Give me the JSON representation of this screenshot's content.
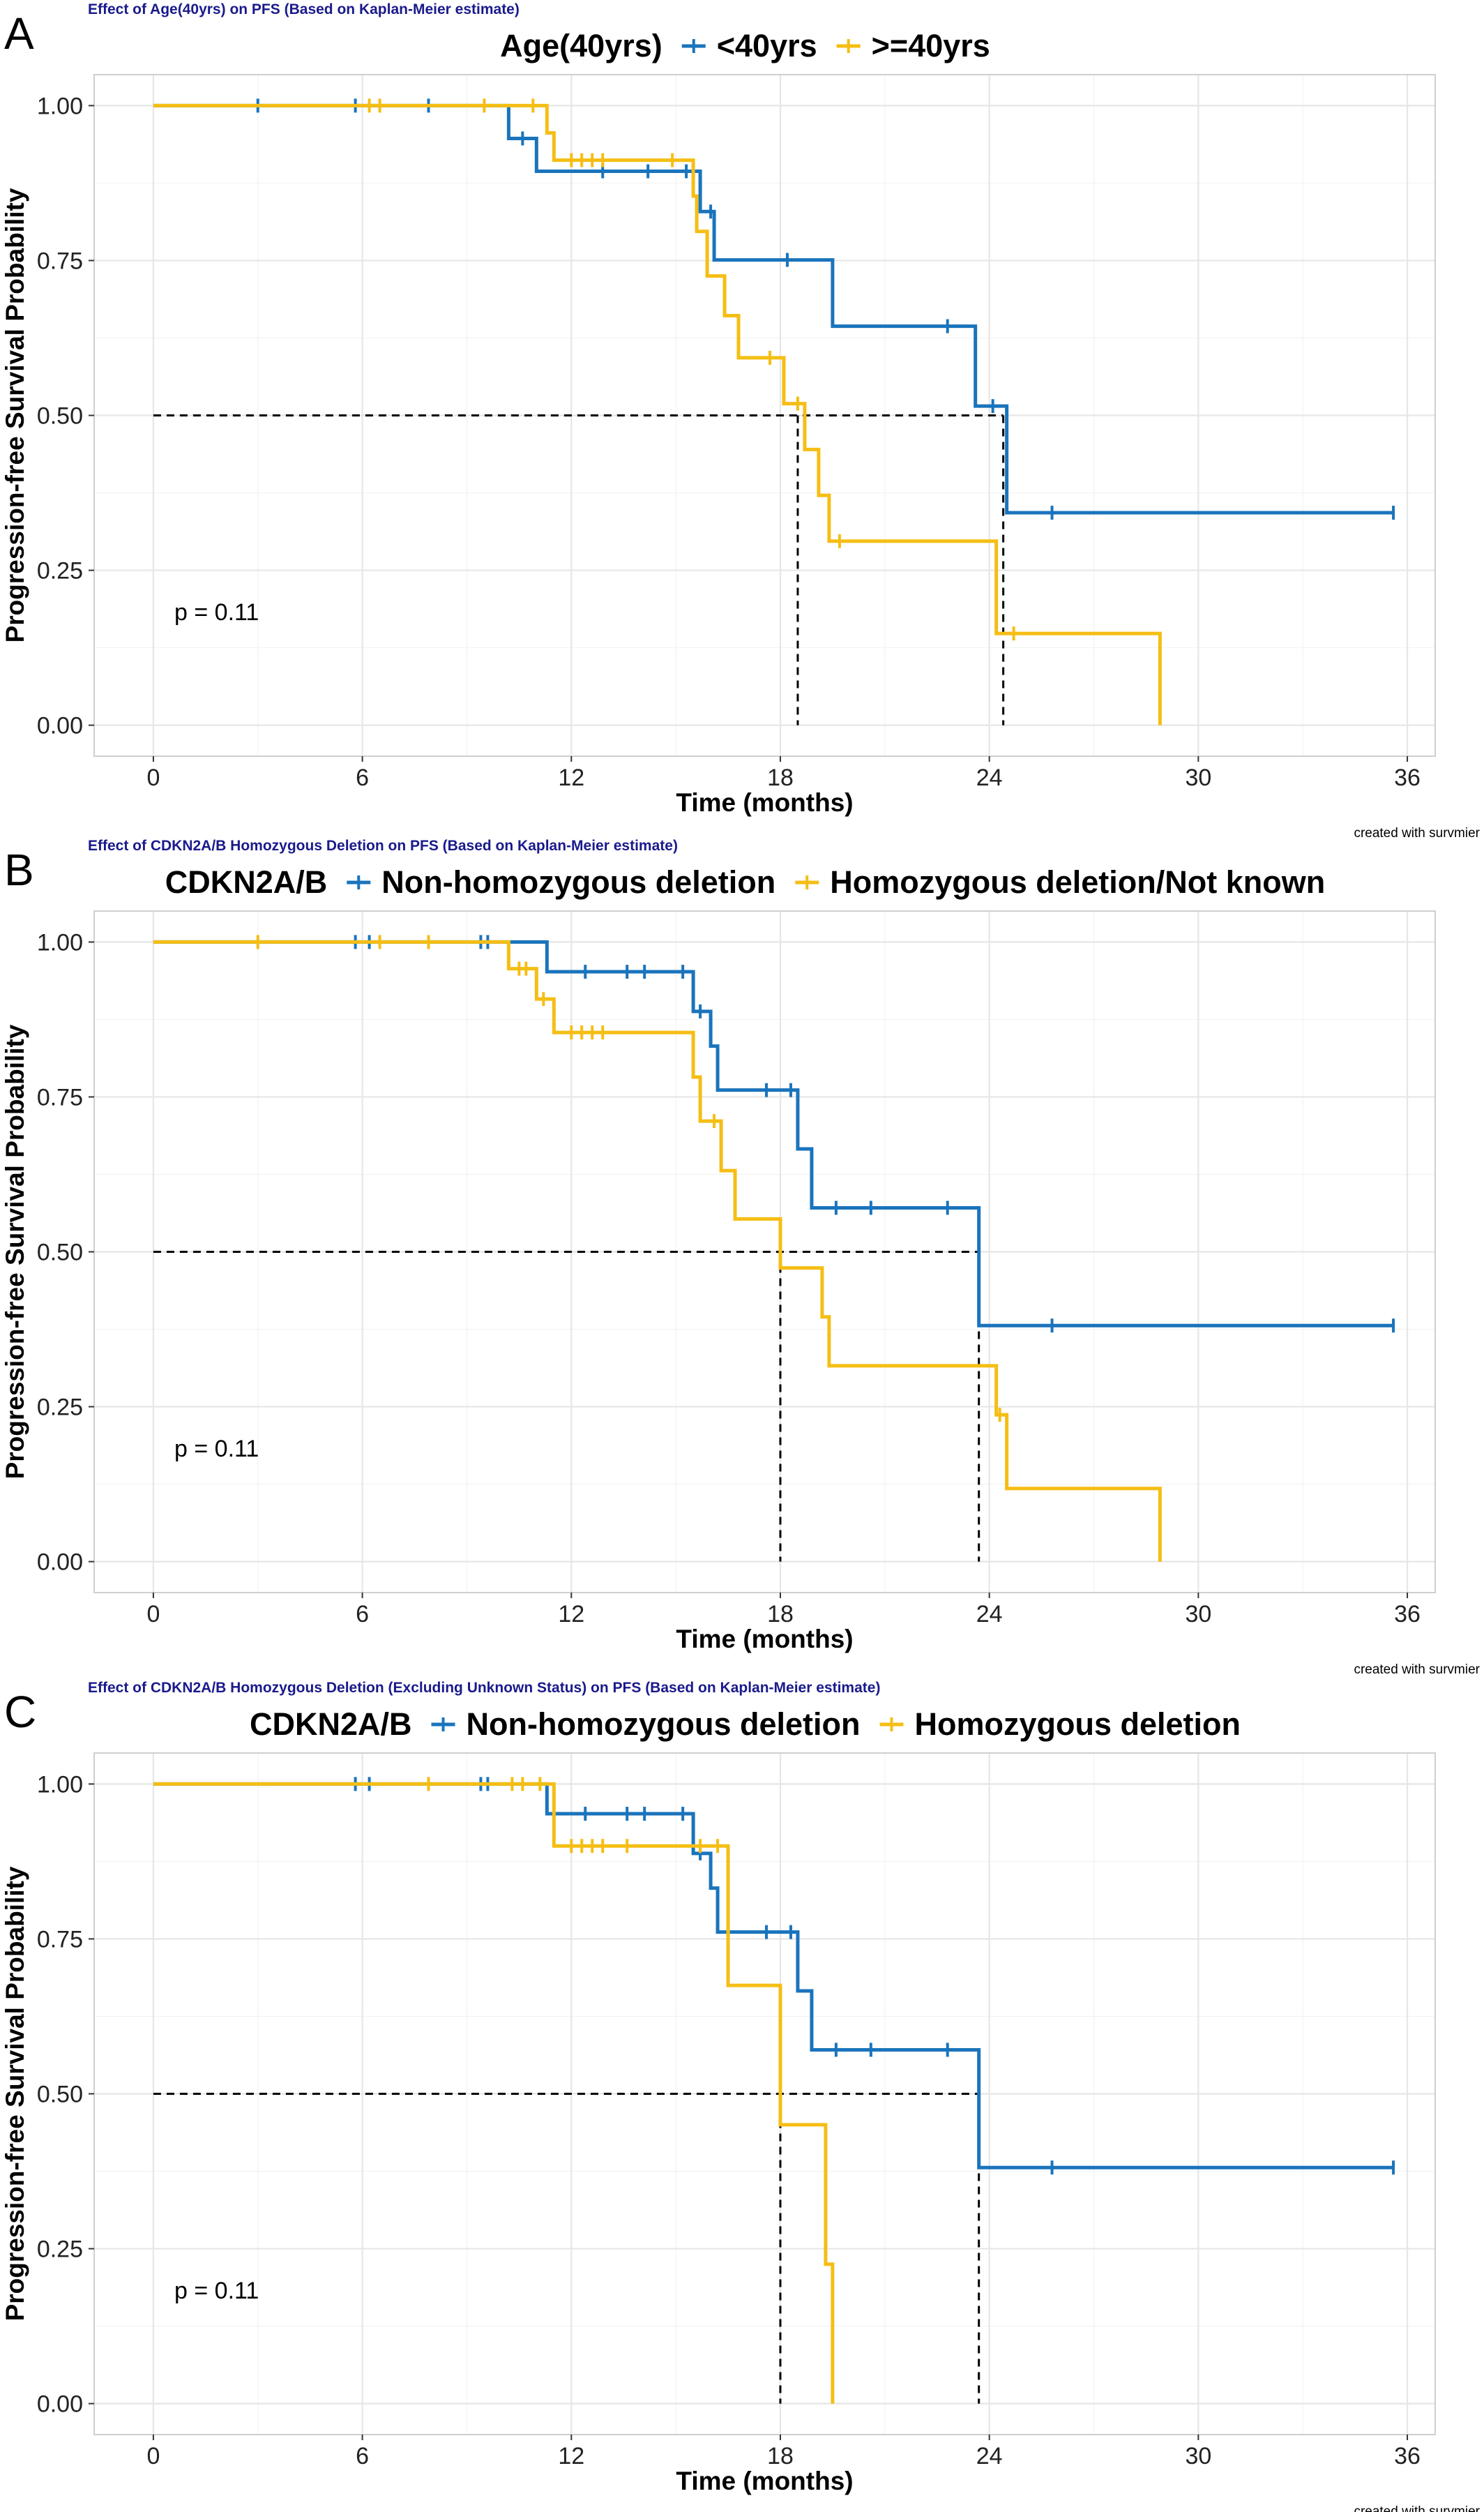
{
  "chart_data": [
    {
      "type": "line",
      "panel_label": "A",
      "title": "Effect of Age(40yrs) on PFS (Based on Kaplan-Meier estimate)",
      "legend_title": "Age(40yrs)",
      "legend_position": "top",
      "xlabel": "Time (months)",
      "ylabel": "Progression-free Survival Probability",
      "xlim": [
        -1.7,
        36.8
      ],
      "ylim": [
        -0.05,
        1.05
      ],
      "x_ticks": [
        0,
        6,
        12,
        18,
        24,
        30,
        36
      ],
      "y_ticks": [
        0.0,
        0.25,
        0.5,
        0.75,
        1.0
      ],
      "y_tick_labels": [
        "0.00",
        "0.25",
        "0.50",
        "0.75",
        "1.00"
      ],
      "grid": true,
      "p_value": "p = 0.11",
      "caption": "created with survmier",
      "median_line": {
        "y": 0.5,
        "x_drops": [
          18.5,
          24.4
        ],
        "x_end": 24.4
      },
      "series": [
        {
          "name": "<40yrs",
          "color": "#1a74bc",
          "steps": [
            [
              0,
              1.0
            ],
            [
              10.2,
              0.947
            ],
            [
              11.0,
              0.894
            ],
            [
              15.7,
              0.829
            ],
            [
              16.1,
              0.751
            ],
            [
              19.5,
              0.644
            ],
            [
              23.6,
              0.515
            ],
            [
              24.5,
              0.343
            ],
            [
              35.6,
              0.343
            ]
          ],
          "censor": [
            [
              3,
              1.0
            ],
            [
              5.8,
              1.0
            ],
            [
              7.9,
              1.0
            ],
            [
              10.6,
              0.947
            ],
            [
              12.9,
              0.894
            ],
            [
              14.2,
              0.894
            ],
            [
              15.3,
              0.894
            ],
            [
              16.0,
              0.829
            ],
            [
              18.2,
              0.751
            ],
            [
              22.8,
              0.644
            ],
            [
              24.1,
              0.515
            ],
            [
              25.8,
              0.343
            ],
            [
              35.6,
              0.343
            ]
          ]
        },
        {
          "name": ">=40yrs",
          "color": "#f5be14",
          "steps": [
            [
              0,
              1.0
            ],
            [
              11.3,
              0.956
            ],
            [
              11.5,
              0.912
            ],
            [
              15.5,
              0.854
            ],
            [
              15.6,
              0.797
            ],
            [
              15.9,
              0.725
            ],
            [
              16.4,
              0.661
            ],
            [
              16.8,
              0.593
            ],
            [
              18.1,
              0.519
            ],
            [
              18.7,
              0.445
            ],
            [
              19.1,
              0.371
            ],
            [
              19.4,
              0.297
            ],
            [
              24.2,
              0.148
            ],
            [
              28.9,
              0.0
            ]
          ],
          "censor": [
            [
              6.2,
              1.0
            ],
            [
              6.5,
              1.0
            ],
            [
              9.5,
              1.0
            ],
            [
              10.9,
              1.0
            ],
            [
              12.0,
              0.912
            ],
            [
              12.3,
              0.912
            ],
            [
              12.6,
              0.912
            ],
            [
              12.9,
              0.912
            ],
            [
              14.9,
              0.912
            ],
            [
              17.7,
              0.593
            ],
            [
              18.5,
              0.519
            ],
            [
              19.7,
              0.297
            ],
            [
              24.7,
              0.148
            ]
          ]
        }
      ]
    },
    {
      "type": "line",
      "panel_label": "B",
      "title": "Effect of CDKN2A/B Homozygous Deletion on PFS (Based on Kaplan-Meier estimate)",
      "legend_title": "CDKN2A/B",
      "legend_position": "top",
      "xlabel": "Time (months)",
      "ylabel": "Progression-free Survival Probability",
      "xlim": [
        -1.7,
        36.8
      ],
      "ylim": [
        -0.05,
        1.05
      ],
      "x_ticks": [
        0,
        6,
        12,
        18,
        24,
        30,
        36
      ],
      "y_ticks": [
        0.0,
        0.25,
        0.5,
        0.75,
        1.0
      ],
      "y_tick_labels": [
        "0.00",
        "0.25",
        "0.50",
        "0.75",
        "1.00"
      ],
      "grid": true,
      "p_value": "p = 0.11",
      "caption": "created with survmier",
      "median_line": {
        "y": 0.5,
        "x_drops": [
          18.0,
          23.7
        ],
        "x_end": 23.7
      },
      "series": [
        {
          "name": "Non-homozygous deletion",
          "color": "#1a74bc",
          "steps": [
            [
              0,
              1.0
            ],
            [
              11.3,
              0.952
            ],
            [
              15.5,
              0.888
            ],
            [
              16.0,
              0.832
            ],
            [
              16.2,
              0.761
            ],
            [
              18.5,
              0.666
            ],
            [
              18.9,
              0.571
            ],
            [
              23.7,
              0.381
            ],
            [
              35.6,
              0.381
            ]
          ],
          "censor": [
            [
              5.8,
              1.0
            ],
            [
              6.2,
              1.0
            ],
            [
              9.4,
              1.0
            ],
            [
              9.6,
              1.0
            ],
            [
              12.4,
              0.952
            ],
            [
              13.6,
              0.952
            ],
            [
              14.1,
              0.952
            ],
            [
              15.2,
              0.952
            ],
            [
              15.7,
              0.888
            ],
            [
              17.6,
              0.761
            ],
            [
              18.3,
              0.761
            ],
            [
              19.6,
              0.571
            ],
            [
              20.6,
              0.571
            ],
            [
              22.8,
              0.571
            ],
            [
              25.8,
              0.381
            ],
            [
              35.6,
              0.381
            ]
          ]
        },
        {
          "name": "Homozygous deletion/Not known",
          "color": "#f5be14",
          "steps": [
            [
              0,
              1.0
            ],
            [
              10.2,
              0.957
            ],
            [
              11.0,
              0.908
            ],
            [
              11.5,
              0.854
            ],
            [
              15.5,
              0.782
            ],
            [
              15.7,
              0.711
            ],
            [
              16.3,
              0.631
            ],
            [
              16.7,
              0.553
            ],
            [
              18.0,
              0.474
            ],
            [
              19.2,
              0.395
            ],
            [
              19.4,
              0.316
            ],
            [
              24.2,
              0.237
            ],
            [
              24.5,
              0.118
            ],
            [
              28.9,
              0.0
            ]
          ],
          "censor": [
            [
              3,
              1.0
            ],
            [
              6.5,
              1.0
            ],
            [
              7.9,
              1.0
            ],
            [
              10.5,
              0.957
            ],
            [
              10.7,
              0.957
            ],
            [
              11.2,
              0.908
            ],
            [
              12.0,
              0.854
            ],
            [
              12.3,
              0.854
            ],
            [
              12.6,
              0.854
            ],
            [
              12.9,
              0.854
            ],
            [
              16.1,
              0.711
            ],
            [
              24.3,
              0.237
            ]
          ]
        }
      ]
    },
    {
      "type": "line",
      "panel_label": "C",
      "title": "Effect of CDKN2A/B Homozygous Deletion (Excluding Unknown Status) on PFS (Based on Kaplan-Meier estimate)",
      "legend_title": "CDKN2A/B",
      "legend_position": "top",
      "xlabel": "Time (months)",
      "ylabel": "Progression-free Survival Probability",
      "xlim": [
        -1.7,
        36.8
      ],
      "ylim": [
        -0.05,
        1.05
      ],
      "x_ticks": [
        0,
        6,
        12,
        18,
        24,
        30,
        36
      ],
      "y_ticks": [
        0.0,
        0.25,
        0.5,
        0.75,
        1.0
      ],
      "y_tick_labels": [
        "0.00",
        "0.25",
        "0.50",
        "0.75",
        "1.00"
      ],
      "grid": true,
      "p_value": "p = 0.11",
      "caption": "created with survmier",
      "median_line": {
        "y": 0.5,
        "x_drops": [
          18.0,
          23.7
        ],
        "x_end": 23.7
      },
      "series": [
        {
          "name": "Non-homozygous deletion",
          "color": "#1a74bc",
          "steps": [
            [
              0,
              1.0
            ],
            [
              11.3,
              0.952
            ],
            [
              15.5,
              0.888
            ],
            [
              16.0,
              0.832
            ],
            [
              16.2,
              0.761
            ],
            [
              18.5,
              0.666
            ],
            [
              18.9,
              0.571
            ],
            [
              23.7,
              0.381
            ],
            [
              35.6,
              0.381
            ]
          ],
          "censor": [
            [
              5.8,
              1.0
            ],
            [
              6.2,
              1.0
            ],
            [
              9.4,
              1.0
            ],
            [
              9.6,
              1.0
            ],
            [
              12.4,
              0.952
            ],
            [
              13.6,
              0.952
            ],
            [
              14.1,
              0.952
            ],
            [
              15.2,
              0.952
            ],
            [
              15.7,
              0.888
            ],
            [
              17.6,
              0.761
            ],
            [
              18.3,
              0.761
            ],
            [
              19.6,
              0.571
            ],
            [
              20.6,
              0.571
            ],
            [
              22.8,
              0.571
            ],
            [
              25.8,
              0.381
            ],
            [
              35.6,
              0.381
            ]
          ]
        },
        {
          "name": "Homozygous deletion",
          "color": "#f5be14",
          "steps": [
            [
              0,
              1.0
            ],
            [
              11.5,
              0.9
            ],
            [
              16.5,
              0.675
            ],
            [
              18.0,
              0.45
            ],
            [
              19.3,
              0.225
            ],
            [
              19.5,
              0.0
            ]
          ],
          "censor": [
            [
              7.9,
              1.0
            ],
            [
              10.3,
              1.0
            ],
            [
              10.6,
              1.0
            ],
            [
              11.1,
              1.0
            ],
            [
              12.0,
              0.9
            ],
            [
              12.3,
              0.9
            ],
            [
              12.6,
              0.9
            ],
            [
              12.9,
              0.9
            ],
            [
              13.6,
              0.9
            ],
            [
              15.7,
              0.9
            ],
            [
              16.2,
              0.9
            ]
          ]
        }
      ]
    }
  ]
}
